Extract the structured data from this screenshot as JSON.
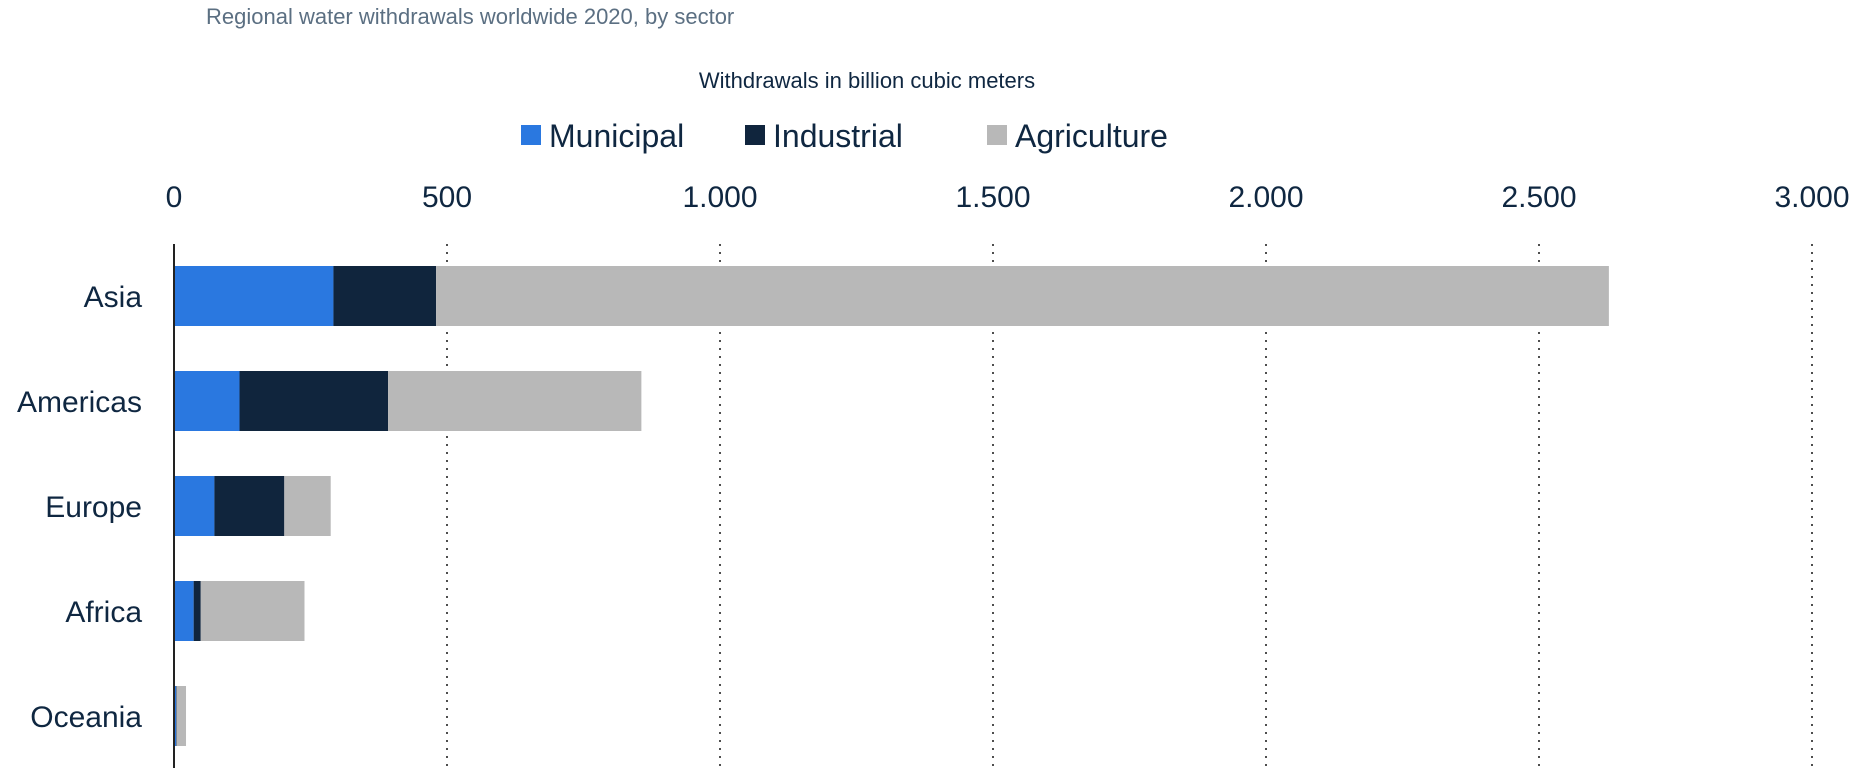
{
  "chart_data": {
    "type": "bar",
    "orientation": "horizontal",
    "stacked": true,
    "subtitle": "Regional water withdrawals worldwide 2020, by sector",
    "xlabel": "Withdrawals in billion cubic meters",
    "ylabel": "",
    "xlim": [
      0,
      3000
    ],
    "xticks": [
      0,
      500,
      1000,
      1500,
      2000,
      2500,
      3000
    ],
    "xtick_labels": [
      "0",
      "500",
      "1.000",
      "1.500",
      "2.000",
      "2.500",
      "3.000"
    ],
    "grid": "vertical dotted",
    "legend_position": "top-center",
    "categories": [
      "Asia",
      "Americas",
      "Europe",
      "Africa",
      "Oceania"
    ],
    "series": [
      {
        "name": "Municipal",
        "color": "#2a78e0",
        "values": [
          292,
          120,
          74,
          36,
          4
        ]
      },
      {
        "name": "Industrial",
        "color": "#10253d",
        "values": [
          188,
          272,
          128,
          13,
          1
        ]
      },
      {
        "name": "Agriculture",
        "color": "#b8b8b8",
        "values": [
          2148,
          464,
          85,
          190,
          17
        ]
      }
    ]
  }
}
